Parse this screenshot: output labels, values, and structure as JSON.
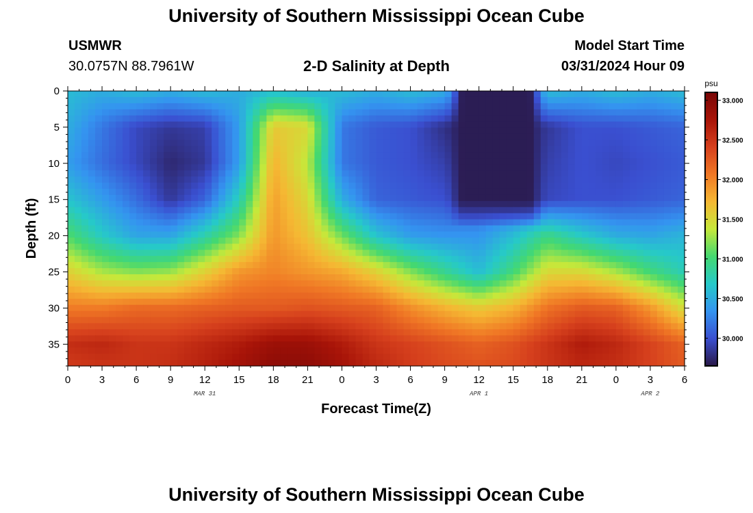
{
  "header": {
    "title": "University of Southern Mississippi Ocean Cube",
    "station": "USMWR",
    "coordinates": "30.0757N  88.7961W",
    "subtitle": "2-D Salinity at Depth",
    "model_start_label": "Model Start Time",
    "model_start_value": "03/31/2024 Hour 09"
  },
  "footer": {
    "title": "University of Southern Mississippi Ocean Cube"
  },
  "chart_data": {
    "type": "heatmap",
    "xlabel": "Forecast Time(Z)",
    "ylabel": "Depth (ft)",
    "x_hours_range": [
      0,
      54
    ],
    "x_tick_hours": [
      0,
      3,
      6,
      9,
      12,
      15,
      18,
      21,
      24,
      27,
      30,
      33,
      36,
      39,
      42,
      45,
      48,
      51,
      54
    ],
    "x_tick_labels": [
      "0",
      "3",
      "6",
      "9",
      "12",
      "15",
      "18",
      "21",
      "0",
      "3",
      "6",
      "9",
      "12",
      "15",
      "18",
      "21",
      "0",
      "3",
      "6"
    ],
    "date_labels": [
      {
        "label": "MAR 31",
        "hour": 12
      },
      {
        "label": "APR 1",
        "hour": 36
      },
      {
        "label": "APR 2",
        "hour": 51
      }
    ],
    "y_range": [
      0,
      38
    ],
    "y_ticks": [
      0,
      5,
      10,
      15,
      20,
      25,
      30,
      35
    ],
    "colorbar": {
      "unit": "psu",
      "range": [
        29.65,
        33.1
      ],
      "ticks": [
        30.0,
        30.5,
        31.0,
        31.5,
        32.0,
        32.5,
        33.0
      ],
      "tick_labels": [
        "30.000",
        "30.500",
        "31.000",
        "31.500",
        "32.000",
        "32.500",
        "33.000"
      ],
      "colors": [
        "#2a1848",
        "#3a4fd0",
        "#3494f0",
        "#26c9c9",
        "#44d870",
        "#c6e83a",
        "#f5b833",
        "#f07825",
        "#d6401d",
        "#a81408",
        "#780606"
      ]
    },
    "cols_hours": [
      0,
      3,
      6,
      9,
      12,
      15,
      18,
      21,
      24,
      27,
      30,
      33,
      36,
      39,
      42,
      45,
      48,
      51,
      54
    ],
    "rows_depth": [
      0,
      5,
      10,
      15,
      20,
      25,
      30,
      35,
      38
    ],
    "values": [
      [
        30.6,
        30.5,
        30.6,
        30.5,
        30.6,
        30.5,
        30.6,
        30.5,
        30.6,
        30.5,
        30.6,
        30.5,
        30.6,
        30.5,
        30.6,
        30.5,
        30.6,
        30.5,
        30.6
      ],
      [
        30.5,
        30.2,
        29.95,
        29.85,
        29.9,
        30.4,
        31.6,
        31.5,
        30.2,
        30.05,
        30.0,
        29.8,
        29.75,
        29.85,
        29.85,
        30.0,
        30.0,
        30.05,
        30.1
      ],
      [
        30.4,
        30.15,
        29.95,
        29.75,
        29.85,
        30.4,
        31.75,
        31.35,
        30.2,
        30.05,
        30.0,
        29.9,
        29.8,
        29.85,
        29.9,
        30.0,
        29.95,
        30.0,
        30.05
      ],
      [
        30.65,
        30.4,
        30.15,
        29.85,
        30.1,
        30.75,
        31.85,
        31.5,
        30.5,
        30.1,
        30.05,
        30.0,
        30.0,
        29.95,
        29.95,
        30.0,
        30.0,
        30.05,
        30.1
      ],
      [
        31.05,
        30.7,
        30.45,
        30.45,
        30.8,
        31.2,
        31.9,
        31.65,
        31.15,
        30.65,
        30.4,
        30.35,
        30.35,
        30.6,
        30.95,
        30.7,
        30.5,
        30.45,
        30.55
      ],
      [
        31.55,
        31.3,
        31.2,
        31.25,
        31.55,
        31.9,
        32.0,
        31.9,
        31.8,
        31.55,
        31.2,
        30.9,
        30.6,
        31.0,
        31.5,
        31.5,
        31.3,
        31.0,
        30.75
      ],
      [
        32.05,
        32.05,
        32.15,
        32.15,
        32.2,
        32.25,
        32.25,
        32.3,
        32.25,
        32.2,
        31.95,
        31.75,
        31.6,
        31.75,
        32.1,
        32.25,
        32.2,
        31.9,
        31.45
      ],
      [
        32.55,
        32.6,
        32.5,
        32.5,
        32.6,
        32.7,
        32.85,
        32.85,
        32.7,
        32.5,
        32.4,
        32.3,
        32.2,
        32.3,
        32.5,
        32.7,
        32.6,
        32.4,
        32.2
      ],
      [
        32.45,
        32.5,
        32.5,
        32.55,
        32.65,
        32.8,
        32.95,
        32.95,
        32.8,
        32.6,
        32.45,
        32.35,
        32.3,
        32.35,
        32.5,
        32.6,
        32.55,
        32.4,
        32.25
      ]
    ],
    "low_cores": [
      {
        "center_hour": 37.5,
        "half_width_hours": 3.5,
        "from_depth": 0,
        "to_depth": 17,
        "floor_value": 29.68
      }
    ]
  }
}
